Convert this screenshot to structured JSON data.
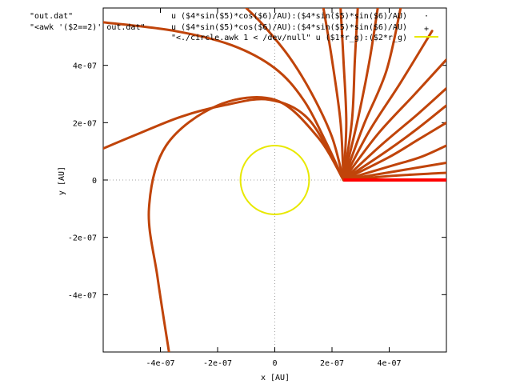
{
  "chart_data": {
    "type": "scatter",
    "title": "",
    "xlabel": "x [AU]",
    "ylabel": "y [AU]",
    "xlim": [
      -6e-07,
      6e-07
    ],
    "ylim": [
      -6e-07,
      6e-07
    ],
    "x_ticks": [
      {
        "value": -4e-07,
        "label": "-4e-07"
      },
      {
        "value": -2e-07,
        "label": "-2e-07"
      },
      {
        "value": 0,
        "label": "0"
      },
      {
        "value": 2e-07,
        "label": "2e-07"
      },
      {
        "value": 4e-07,
        "label": "4e-07"
      }
    ],
    "y_ticks": [
      {
        "value": 4e-07,
        "label": "4e-07"
      },
      {
        "value": 2e-07,
        "label": "2e-07"
      },
      {
        "value": 0,
        "label": "0"
      },
      {
        "value": -2e-07,
        "label": "-2e-07"
      },
      {
        "value": -4e-07,
        "label": "-4e-07"
      }
    ],
    "zero_axes": true,
    "legend_position": "top",
    "series": [
      {
        "name": "\"out.dat\"",
        "expression": "u ($4*sin($5)*cos($6)/AU):($4*sin($5)*sin($6)/AU)",
        "style": "points",
        "color": "#c0440a",
        "source_point": [
          2.4e-07,
          0
        ],
        "curves": [
          [
            [
              2.4e-07,
              0
            ],
            [
              1.8e-07,
              1.3e-07
            ],
            [
              1e-07,
              2.8e-07
            ],
            [
              0,
              3.9e-07
            ],
            [
              -1.5e-07,
              4.7e-07
            ],
            [
              -3.5e-07,
              5.2e-07
            ],
            [
              -6e-07,
              5.5e-07
            ]
          ],
          [
            [
              2.4e-07,
              0
            ],
            [
              1.2e-07,
              2.1e-07
            ],
            [
              -2e-08,
              2.8e-07
            ],
            [
              -1.8e-07,
              2.6e-07
            ],
            [
              -3.3e-07,
              2.2e-07
            ],
            [
              -4.8e-07,
              1.6e-07
            ],
            [
              -6e-07,
              1.1e-07
            ]
          ],
          [
            [
              2.4e-07,
              0
            ],
            [
              1.5e-07,
              1.5e-07
            ],
            [
              0,
              2.8e-07
            ],
            [
              -2e-07,
              2.6e-07
            ],
            [
              -3.8e-07,
              1.2e-07
            ],
            [
              -4.4e-07,
              -1e-07
            ],
            [
              -4.1e-07,
              -3.4e-07
            ],
            [
              -3.7e-07,
              -6e-07
            ]
          ],
          [
            [
              2.4e-07,
              0
            ],
            [
              2e-07,
              1.5e-07
            ],
            [
              1.3e-07,
              3e-07
            ],
            [
              5e-08,
              4.3e-07
            ],
            [
              -4e-08,
              5.4e-07
            ],
            [
              -1e-07,
              6e-07
            ]
          ],
          [
            [
              2.4e-07,
              0
            ],
            [
              2.3e-07,
              2e-07
            ],
            [
              2e-07,
              4.2e-07
            ],
            [
              1.7e-07,
              6e-07
            ]
          ],
          [
            [
              2.4e-07,
              0
            ],
            [
              2.5e-07,
              2e-07
            ],
            [
              2.4e-07,
              4.2e-07
            ],
            [
              2.3e-07,
              6e-07
            ]
          ],
          [
            [
              2.4e-07,
              0
            ],
            [
              2.7e-07,
              2.1e-07
            ],
            [
              2.8e-07,
              4.2e-07
            ],
            [
              2.9e-07,
              6e-07
            ]
          ],
          [
            [
              2.4e-07,
              0
            ],
            [
              2.9e-07,
              2.1e-07
            ],
            [
              3.3e-07,
              4.1e-07
            ],
            [
              3.6e-07,
              6e-07
            ]
          ],
          [
            [
              2.4e-07,
              0
            ],
            [
              3.1e-07,
              1.9e-07
            ],
            [
              3.9e-07,
              3.8e-07
            ],
            [
              4.4e-07,
              6e-07
            ]
          ],
          [
            [
              2.4e-07,
              0
            ],
            [
              3.3e-07,
              1.7e-07
            ],
            [
              4.4e-07,
              3.4e-07
            ],
            [
              5.5e-07,
              5.2e-07
            ]
          ],
          [
            [
              2.4e-07,
              0
            ],
            [
              3.6e-07,
              1.6e-07
            ],
            [
              4.9e-07,
              3e-07
            ],
            [
              6e-07,
              4.2e-07
            ]
          ],
          [
            [
              2.4e-07,
              0
            ],
            [
              3.7e-07,
              1.2e-07
            ],
            [
              5e-07,
              2.3e-07
            ],
            [
              6e-07,
              3.2e-07
            ]
          ],
          [
            [
              2.4e-07,
              0
            ],
            [
              3.9e-07,
              1e-07
            ],
            [
              5e-07,
              1.8e-07
            ],
            [
              6e-07,
              2.6e-07
            ]
          ],
          [
            [
              2.4e-07,
              0
            ],
            [
              4e-07,
              8e-08
            ],
            [
              5e-07,
              1.4e-07
            ],
            [
              6e-07,
              2e-07
            ]
          ],
          [
            [
              2.4e-07,
              0
            ],
            [
              4.1e-07,
              5e-08
            ],
            [
              5.1e-07,
              8e-08
            ],
            [
              6e-07,
              1.2e-07
            ]
          ],
          [
            [
              2.4e-07,
              0
            ],
            [
              4.2e-07,
              3e-08
            ],
            [
              6e-07,
              6e-08
            ]
          ],
          [
            [
              2.4e-07,
              0
            ],
            [
              4.2e-07,
              1.5e-08
            ],
            [
              6e-07,
              2.5e-08
            ]
          ]
        ]
      },
      {
        "name": "\"<awk '($2==2)' out.dat\"",
        "expression": "u ($4*sin($5)*cos($6)/AU):($4*sin($5)*sin($6)/AU)",
        "style": "points",
        "color": "#ff0000",
        "x_range": [
          2.4e-07,
          6e-07
        ],
        "y": 0
      },
      {
        "name": "\"<./circle.awk 1 < /dev/null\"",
        "expression": "u ($1*r_g):($2*r_g)",
        "style": "lines",
        "color": "#e8e800",
        "center": [
          0,
          0
        ],
        "radius": 1.2e-07
      }
    ]
  }
}
